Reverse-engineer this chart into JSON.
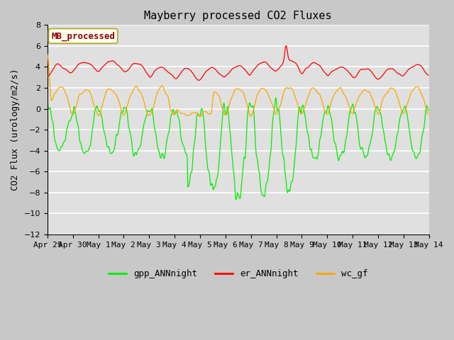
{
  "title": "Mayberry processed CO2 Fluxes",
  "ylabel": "CO2 Flux (urology/m2/s)",
  "ylim": [
    -12,
    8
  ],
  "yticks": [
    -12,
    -10,
    -8,
    -6,
    -4,
    -2,
    0,
    2,
    4,
    6,
    8
  ],
  "bg_outer": "#c8c8c8",
  "bg_inner": "#e0e0e0",
  "legend_label": "MB_processed",
  "legend_box_facecolor": "#fffff0",
  "legend_text_color": "#8b0000",
  "legend_box_edgecolor": "#aaa820",
  "gpp_color": "#00ee00",
  "er_color": "#ff0000",
  "wc_color": "#ffa500",
  "gpp_label": "gpp_ANNnight",
  "er_label": "er_ANNnight",
  "wc_label": "wc_gf",
  "n_days": 15,
  "points_per_day": 48,
  "font_family": "monospace",
  "title_fontsize": 11,
  "axis_fontsize": 9,
  "tick_fontsize": 8
}
